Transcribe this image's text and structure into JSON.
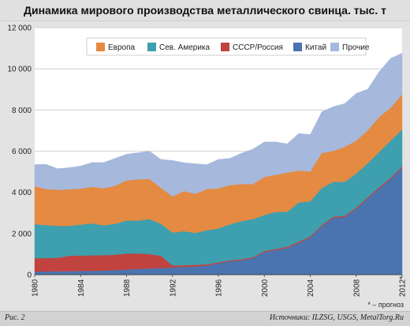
{
  "page": {
    "title": "Динамика мирового производства металлического свинца. тыс. т",
    "footnote": "* – прогноз",
    "figure_label": "Рис. 2",
    "sources": "Источники: ILZSG, USGS, MetalTorg.Ru"
  },
  "chart_data": {
    "type": "area",
    "stacked": true,
    "title": "Динамика мирового производства металлического свинца. тыс. т",
    "ylim": [
      0,
      12000
    ],
    "yticks": [
      0,
      2000,
      4000,
      6000,
      8000,
      10000,
      12000
    ],
    "ytick_labels": [
      "0",
      "2 000",
      "4 000",
      "6 000",
      "8 000",
      "10 000",
      "12 000"
    ],
    "x": [
      1980,
      1981,
      1982,
      1983,
      1984,
      1985,
      1986,
      1987,
      1988,
      1989,
      1990,
      1991,
      1992,
      1993,
      1994,
      1995,
      1996,
      1997,
      1998,
      1999,
      2000,
      2001,
      2002,
      2003,
      2004,
      2005,
      2006,
      2007,
      2008,
      2009,
      2010,
      2011,
      2012
    ],
    "xticks": [
      "1980",
      "1984",
      "1988",
      "1992",
      "1996",
      "2000",
      "2004",
      "2008",
      "2012*"
    ],
    "grid": true,
    "legend": "top",
    "series": [
      {
        "name": "Китай",
        "color": "#4a74b0",
        "values": [
          150,
          160,
          170,
          170,
          180,
          190,
          200,
          220,
          250,
          280,
          300,
          320,
          350,
          380,
          400,
          450,
          550,
          650,
          700,
          800,
          1100,
          1200,
          1300,
          1550,
          1800,
          2350,
          2750,
          2800,
          3200,
          3700,
          4200,
          4650,
          5200
        ]
      },
      {
        "name": "СССР/Россия",
        "color": "#c0433f",
        "values": [
          650,
          650,
          650,
          750,
          750,
          750,
          750,
          750,
          780,
          750,
          700,
          600,
          100,
          80,
          80,
          60,
          50,
          50,
          50,
          50,
          50,
          50,
          60,
          60,
          60,
          60,
          60,
          60,
          60,
          60,
          60,
          60,
          60
        ]
      },
      {
        "name": "Сев. Америка",
        "color": "#3e9fae",
        "values": [
          1650,
          1600,
          1550,
          1450,
          1500,
          1550,
          1450,
          1500,
          1600,
          1600,
          1700,
          1550,
          1600,
          1650,
          1550,
          1650,
          1650,
          1750,
          1850,
          1850,
          1750,
          1800,
          1700,
          1900,
          1700,
          1800,
          1700,
          1650,
          1650,
          1650,
          1700,
          1800,
          1800
        ]
      },
      {
        "name": "Европа",
        "color": "#e48a42",
        "values": [
          1850,
          1750,
          1750,
          1780,
          1750,
          1780,
          1800,
          1850,
          1950,
          2000,
          1950,
          1750,
          1750,
          1950,
          1900,
          2000,
          1950,
          1900,
          1800,
          1700,
          1850,
          1800,
          1900,
          1550,
          1450,
          1700,
          1500,
          1700,
          1600,
          1600,
          1700,
          1600,
          1700
        ]
      },
      {
        "name": "Прочие",
        "color": "#a6b8dc",
        "values": [
          1050,
          1200,
          1030,
          1050,
          1100,
          1180,
          1250,
          1330,
          1270,
          1300,
          1350,
          1380,
          1750,
          1380,
          1460,
          1190,
          1400,
          1300,
          1500,
          1700,
          1700,
          1600,
          1400,
          1800,
          1800,
          2000,
          2150,
          2100,
          2300,
          2000,
          2200,
          2400,
          2000
        ]
      }
    ],
    "legend_order": [
      "Европа",
      "Сев. Америка",
      "СССР/Россия",
      "Китай",
      "Прочие"
    ]
  }
}
